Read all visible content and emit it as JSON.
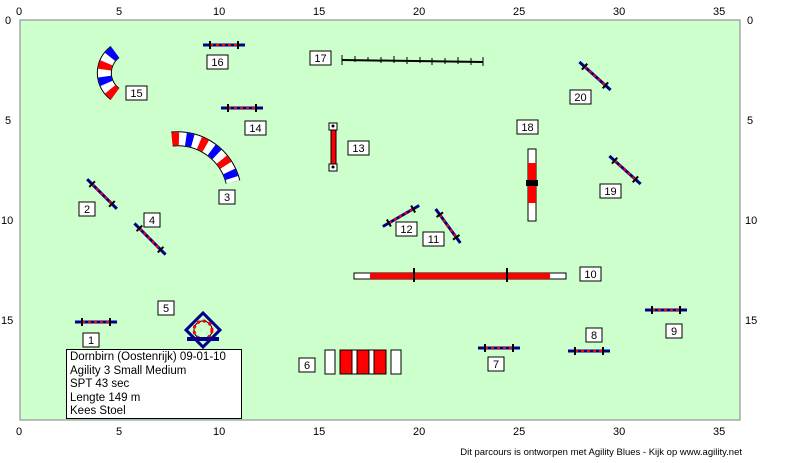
{
  "colors": {
    "field": "#ccffcc",
    "field_border": "#808080",
    "pole_dark": "#00008b",
    "pole_red": "#ff0000",
    "tunnel_blue": "#0000ff",
    "tunnel_red": "#ff0000"
  },
  "axes": {
    "x_ticks": [
      "0",
      "5",
      "10",
      "15",
      "20",
      "25",
      "30",
      "35"
    ],
    "y_ticks": [
      "0",
      "5",
      "10",
      "15"
    ]
  },
  "obstacles": [
    {
      "number": "1",
      "type": "jump"
    },
    {
      "number": "2",
      "type": "jump"
    },
    {
      "number": "3",
      "type": "tunnel"
    },
    {
      "number": "4",
      "type": "jump"
    },
    {
      "number": "5",
      "type": "tyre"
    },
    {
      "number": "6",
      "type": "long-jump"
    },
    {
      "number": "7",
      "type": "jump"
    },
    {
      "number": "8",
      "type": "jump"
    },
    {
      "number": "9",
      "type": "jump"
    },
    {
      "number": "10",
      "type": "dog-walk"
    },
    {
      "number": "11",
      "type": "jump"
    },
    {
      "number": "12",
      "type": "jump"
    },
    {
      "number": "13",
      "type": "a-frame"
    },
    {
      "number": "14",
      "type": "jump"
    },
    {
      "number": "15",
      "type": "tunnel"
    },
    {
      "number": "16",
      "type": "jump"
    },
    {
      "number": "17",
      "type": "weave-poles"
    },
    {
      "number": "18",
      "type": "seesaw"
    },
    {
      "number": "19",
      "type": "jump"
    },
    {
      "number": "20",
      "type": "jump"
    }
  ],
  "info": {
    "line1": "Dornbirn (Oostenrijk) 09-01-10",
    "line2": "Agility 3 Small Medium",
    "line3": "SPT 43 sec",
    "line4": "Lengte 149 m",
    "line5": "Kees Stoel"
  },
  "footer": "Dit parcours is ontworpen met Agility Blues - Kijk op www.agility.net"
}
